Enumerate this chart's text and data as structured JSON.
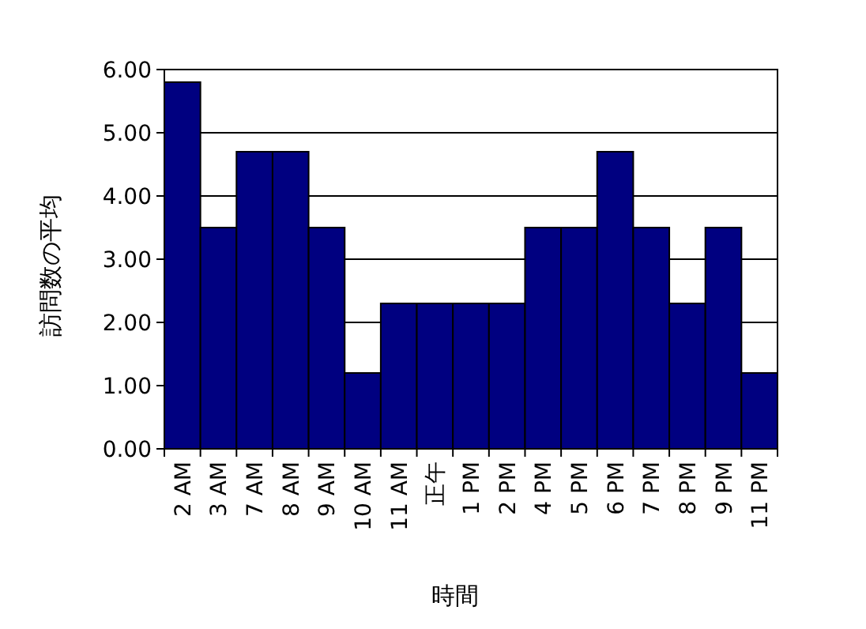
{
  "chart_data": {
    "type": "bar",
    "xlabel": "時間",
    "ylabel": "訪問数の平均",
    "categories": [
      "2 AM",
      "3 AM",
      "7 AM",
      "8 AM",
      "9 AM",
      "10 AM",
      "11 AM",
      "正午",
      "1 PM",
      "2 PM",
      "4 PM",
      "5 PM",
      "6 PM",
      "7 PM",
      "8 PM",
      "9 PM",
      "11 PM"
    ],
    "values": [
      5.8,
      3.5,
      4.7,
      4.7,
      3.5,
      1.2,
      2.3,
      2.3,
      2.3,
      2.3,
      3.5,
      3.5,
      4.7,
      3.5,
      2.3,
      3.5,
      1.2
    ],
    "color": "#000080",
    "ylim": [
      0,
      6
    ],
    "yticks": [
      {
        "value": 0,
        "label": "0.00"
      },
      {
        "value": 1,
        "label": "1.00"
      },
      {
        "value": 2,
        "label": "2.00"
      },
      {
        "value": 3,
        "label": "3.00"
      },
      {
        "value": 4,
        "label": "4.00"
      },
      {
        "value": 5,
        "label": "5.00"
      },
      {
        "value": 6,
        "label": "6.00"
      }
    ],
    "grid": "y"
  }
}
